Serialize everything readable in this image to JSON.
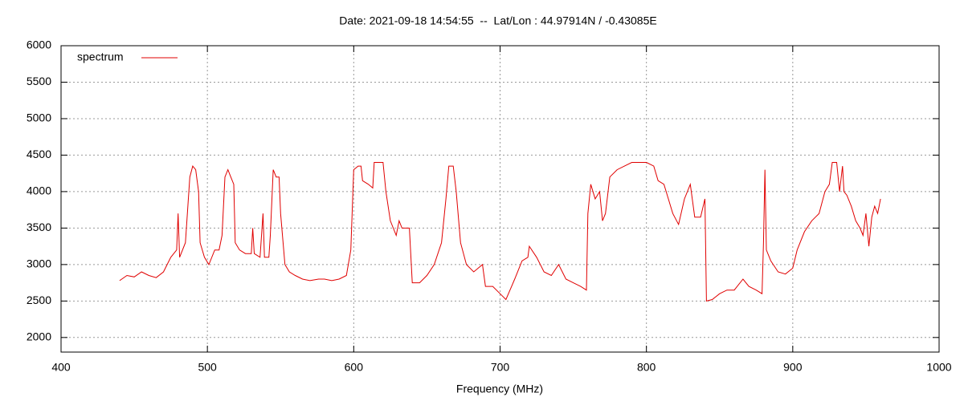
{
  "chart_data": {
    "type": "line",
    "title": "Date: 2021-09-18 14:54:55  --  Lat/Lon : 44.97914N / -0.43085E",
    "x_label": "Frequency (MHz)",
    "xlim": [
      400,
      1000
    ],
    "xticks": [
      400,
      500,
      600,
      700,
      800,
      900,
      1000
    ],
    "ylim": [
      1800,
      6000
    ],
    "yticks": [
      2000,
      2500,
      3000,
      3500,
      4000,
      4500,
      5000,
      5500,
      6000
    ],
    "grid": true,
    "legend": "top-left",
    "x": [
      440,
      445,
      450,
      455,
      460,
      465,
      470,
      475,
      479,
      480,
      481,
      485,
      488,
      490,
      492,
      494,
      495,
      498,
      501,
      505,
      508,
      510,
      512,
      514,
      516,
      518,
      519,
      522,
      526,
      530,
      531,
      532,
      536,
      538,
      539,
      542,
      543,
      545,
      547,
      549,
      550,
      553,
      556,
      560,
      565,
      570,
      576,
      580,
      585,
      590,
      595,
      598,
      600,
      603,
      605,
      606,
      610,
      613,
      614,
      620,
      622,
      625,
      629,
      631,
      633,
      638,
      640,
      645,
      650,
      655,
      660,
      663,
      665,
      668,
      670,
      673,
      677,
      682,
      688,
      690,
      695,
      700,
      704,
      710,
      715,
      719,
      720,
      725,
      730,
      735,
      740,
      745,
      750,
      755,
      759,
      760,
      762,
      765,
      768,
      770,
      772,
      775,
      780,
      785,
      790,
      800,
      805,
      808,
      812,
      815,
      818,
      822,
      826,
      830,
      833,
      837,
      840,
      841,
      845,
      850,
      855,
      860,
      866,
      870,
      875,
      879,
      880,
      881,
      882,
      885,
      890,
      895,
      900,
      903,
      908,
      913,
      918,
      922,
      925,
      927,
      930,
      932,
      934,
      935,
      937,
      940,
      943,
      946,
      948,
      950,
      952,
      954,
      956,
      958,
      960
    ],
    "series": [
      {
        "name": "spectrum",
        "color": "#e00000",
        "values": [
          2780,
          2850,
          2830,
          2900,
          2850,
          2820,
          2900,
          3100,
          3200,
          3700,
          3100,
          3300,
          4200,
          4350,
          4300,
          4000,
          3300,
          3100,
          3000,
          3200,
          3200,
          3400,
          4200,
          4300,
          4200,
          4100,
          3300,
          3200,
          3150,
          3150,
          3500,
          3150,
          3100,
          3700,
          3100,
          3100,
          3400,
          4300,
          4200,
          4200,
          3700,
          3000,
          2900,
          2850,
          2800,
          2780,
          2800,
          2800,
          2780,
          2800,
          2850,
          3200,
          4300,
          4350,
          4350,
          4150,
          4100,
          4050,
          4400,
          4400,
          4000,
          3600,
          3400,
          3600,
          3500,
          3500,
          2750,
          2750,
          2850,
          3000,
          3300,
          3900,
          4350,
          4350,
          4000,
          3300,
          3000,
          2900,
          3000,
          2700,
          2700,
          2600,
          2520,
          2800,
          3050,
          3100,
          3250,
          3100,
          2900,
          2850,
          3000,
          2800,
          2750,
          2700,
          2650,
          3700,
          4100,
          3900,
          4000,
          3600,
          3700,
          4200,
          4300,
          4350,
          4400,
          4400,
          4350,
          4150,
          4100,
          3900,
          3700,
          3550,
          3900,
          4100,
          3650,
          3650,
          3900,
          2500,
          2520,
          2600,
          2650,
          2650,
          2800,
          2700,
          2650,
          2600,
          3300,
          4300,
          3200,
          3050,
          2900,
          2870,
          2950,
          3200,
          3450,
          3600,
          3700,
          4000,
          4100,
          4400,
          4400,
          4000,
          4350,
          4000,
          3950,
          3800,
          3600,
          3500,
          3400,
          3700,
          3250,
          3650,
          3800,
          3700,
          3900
        ]
      }
    ]
  }
}
